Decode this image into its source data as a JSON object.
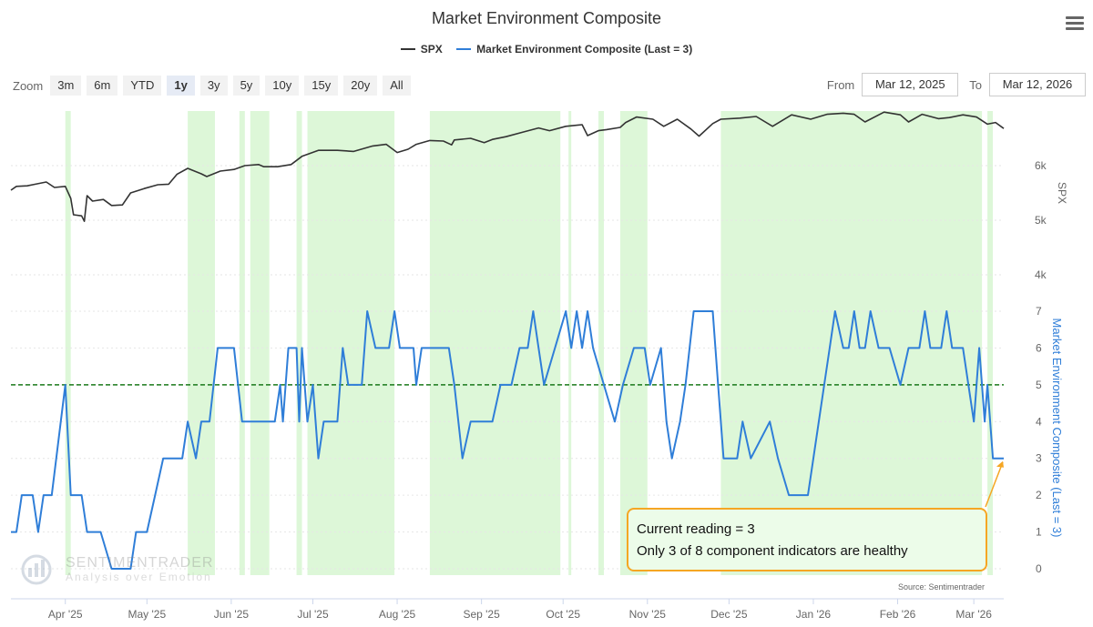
{
  "title": "Market Environment Composite",
  "legend": [
    {
      "name": "SPX",
      "color": "#333333"
    },
    {
      "name": "Market Environment Composite (Last = 3)",
      "color": "#2f7ed8"
    }
  ],
  "zoom": {
    "label": "Zoom",
    "buttons": [
      "3m",
      "6m",
      "YTD",
      "1y",
      "3y",
      "5y",
      "10y",
      "15y",
      "20y",
      "All"
    ],
    "active": "1y"
  },
  "range": {
    "from_label": "From",
    "from": "Mar 12, 2025",
    "to_label": "To",
    "to": "Mar 12, 2026"
  },
  "annotation": {
    "line1": "Current reading = 3",
    "line2": "Only 3 of 8 component indicators are healthy"
  },
  "watermark": {
    "name": "SENTIMENTRADER",
    "tagline": "Analysis over Emotion"
  },
  "credit": "Source: Sentimentrader",
  "colors": {
    "spx": "#333333",
    "composite": "#2f7ed8",
    "threshold": "#1a7a1a",
    "shade": "#ddf7d8",
    "arrow": "#f5a623"
  },
  "chart_data": {
    "type": "line",
    "x_range": [
      "2025-03-12",
      "2026-03-12"
    ],
    "x_ticks": [
      {
        "date": "2025-04-01",
        "label": "Apr '25"
      },
      {
        "date": "2025-05-01",
        "label": "May '25"
      },
      {
        "date": "2025-06-01",
        "label": "Jun '25"
      },
      {
        "date": "2025-07-01",
        "label": "Jul '25"
      },
      {
        "date": "2025-08-01",
        "label": "Aug '25"
      },
      {
        "date": "2025-09-01",
        "label": "Sep '25"
      },
      {
        "date": "2025-10-01",
        "label": "Oct '25"
      },
      {
        "date": "2025-11-01",
        "label": "Nov '25"
      },
      {
        "date": "2025-12-01",
        "label": "Dec '25"
      },
      {
        "date": "2026-01-01",
        "label": "Jan '26"
      },
      {
        "date": "2026-02-01",
        "label": "Feb '26"
      },
      {
        "date": "2026-03-01",
        "label": "Mar '26"
      }
    ],
    "spx_axis": {
      "label": "SPX",
      "ticks": [
        {
          "value": 4000,
          "label": "4k"
        },
        {
          "value": 5000,
          "label": "5k"
        },
        {
          "value": 6000,
          "label": "6k"
        }
      ],
      "range": [
        3000,
        7000
      ]
    },
    "composite_axis": {
      "label": "Market Environment Composite (Last = 3)",
      "ticks": [
        0,
        1,
        2,
        3,
        4,
        5,
        6,
        7
      ],
      "range": [
        0,
        7
      ]
    },
    "threshold": 5,
    "shaded_periods": [
      [
        "2025-04-01",
        "2025-04-03"
      ],
      [
        "2025-05-16",
        "2025-05-26"
      ],
      [
        "2025-06-04",
        "2025-06-06"
      ],
      [
        "2025-06-08",
        "2025-06-15"
      ],
      [
        "2025-06-25",
        "2025-06-27"
      ],
      [
        "2025-06-29",
        "2025-07-31"
      ],
      [
        "2025-08-13",
        "2025-09-30"
      ],
      [
        "2025-10-03",
        "2025-10-04"
      ],
      [
        "2025-10-14",
        "2025-10-16"
      ],
      [
        "2025-10-22",
        "2025-11-01"
      ],
      [
        "2025-11-28",
        "2026-03-04"
      ],
      [
        "2026-03-06",
        "2026-03-08"
      ]
    ],
    "series": [
      {
        "name": "SPX",
        "points": [
          [
            "2025-03-12",
            5550
          ],
          [
            "2025-03-14",
            5620
          ],
          [
            "2025-03-18",
            5630
          ],
          [
            "2025-03-21",
            5660
          ],
          [
            "2025-03-25",
            5700
          ],
          [
            "2025-03-28",
            5600
          ],
          [
            "2025-04-01",
            5620
          ],
          [
            "2025-04-03",
            5400
          ],
          [
            "2025-04-04",
            5100
          ],
          [
            "2025-04-07",
            5080
          ],
          [
            "2025-04-08",
            4980
          ],
          [
            "2025-04-09",
            5450
          ],
          [
            "2025-04-11",
            5350
          ],
          [
            "2025-04-15",
            5380
          ],
          [
            "2025-04-18",
            5270
          ],
          [
            "2025-04-22",
            5280
          ],
          [
            "2025-04-25",
            5500
          ],
          [
            "2025-04-30",
            5580
          ],
          [
            "2025-05-05",
            5650
          ],
          [
            "2025-05-09",
            5660
          ],
          [
            "2025-05-12",
            5840
          ],
          [
            "2025-05-16",
            5950
          ],
          [
            "2025-05-21",
            5850
          ],
          [
            "2025-05-23",
            5800
          ],
          [
            "2025-05-28",
            5900
          ],
          [
            "2025-06-02",
            5930
          ],
          [
            "2025-06-06",
            6000
          ],
          [
            "2025-06-11",
            6020
          ],
          [
            "2025-06-13",
            5980
          ],
          [
            "2025-06-18",
            5980
          ],
          [
            "2025-06-23",
            6020
          ],
          [
            "2025-06-27",
            6170
          ],
          [
            "2025-07-03",
            6280
          ],
          [
            "2025-07-10",
            6280
          ],
          [
            "2025-07-16",
            6260
          ],
          [
            "2025-07-23",
            6360
          ],
          [
            "2025-07-28",
            6390
          ],
          [
            "2025-08-01",
            6240
          ],
          [
            "2025-08-05",
            6300
          ],
          [
            "2025-08-08",
            6390
          ],
          [
            "2025-08-13",
            6460
          ],
          [
            "2025-08-18",
            6450
          ],
          [
            "2025-08-21",
            6380
          ],
          [
            "2025-08-22",
            6470
          ],
          [
            "2025-08-28",
            6500
          ],
          [
            "2025-09-02",
            6420
          ],
          [
            "2025-09-05",
            6480
          ],
          [
            "2025-09-10",
            6530
          ],
          [
            "2025-09-16",
            6610
          ],
          [
            "2025-09-22",
            6690
          ],
          [
            "2025-09-26",
            6640
          ],
          [
            "2025-10-02",
            6720
          ],
          [
            "2025-10-08",
            6750
          ],
          [
            "2025-10-10",
            6550
          ],
          [
            "2025-10-14",
            6640
          ],
          [
            "2025-10-17",
            6660
          ],
          [
            "2025-10-22",
            6700
          ],
          [
            "2025-10-24",
            6790
          ],
          [
            "2025-10-28",
            6890
          ],
          [
            "2025-11-03",
            6850
          ],
          [
            "2025-11-07",
            6720
          ],
          [
            "2025-11-12",
            6850
          ],
          [
            "2025-11-17",
            6670
          ],
          [
            "2025-11-20",
            6540
          ],
          [
            "2025-11-25",
            6770
          ],
          [
            "2025-11-28",
            6850
          ],
          [
            "2025-12-05",
            6870
          ],
          [
            "2025-12-11",
            6900
          ],
          [
            "2025-12-17",
            6720
          ],
          [
            "2025-12-24",
            6930
          ],
          [
            "2025-12-31",
            6850
          ],
          [
            "2026-01-06",
            6940
          ],
          [
            "2026-01-12",
            6960
          ],
          [
            "2026-01-16",
            6940
          ],
          [
            "2026-01-20",
            6800
          ],
          [
            "2026-01-27",
            6980
          ],
          [
            "2026-02-02",
            6930
          ],
          [
            "2026-02-05",
            6800
          ],
          [
            "2026-02-10",
            6940
          ],
          [
            "2026-02-16",
            6860
          ],
          [
            "2026-02-20",
            6880
          ],
          [
            "2026-02-25",
            6930
          ],
          [
            "2026-03-02",
            6890
          ],
          [
            "2026-03-06",
            6760
          ],
          [
            "2026-03-09",
            6790
          ],
          [
            "2026-03-12",
            6680
          ]
        ]
      },
      {
        "name": "Market Environment Composite (Last = 3)",
        "points": [
          [
            "2025-03-12",
            1
          ],
          [
            "2025-03-14",
            1
          ],
          [
            "2025-03-16",
            2
          ],
          [
            "2025-03-20",
            2
          ],
          [
            "2025-03-22",
            1
          ],
          [
            "2025-03-24",
            2
          ],
          [
            "2025-03-27",
            2
          ],
          [
            "2025-04-01",
            5
          ],
          [
            "2025-04-03",
            2
          ],
          [
            "2025-04-07",
            2
          ],
          [
            "2025-04-09",
            1
          ],
          [
            "2025-04-14",
            1
          ],
          [
            "2025-04-18",
            0
          ],
          [
            "2025-04-25",
            0
          ],
          [
            "2025-04-27",
            1
          ],
          [
            "2025-05-01",
            1
          ],
          [
            "2025-05-04",
            2
          ],
          [
            "2025-05-07",
            3
          ],
          [
            "2025-05-14",
            3
          ],
          [
            "2025-05-16",
            4
          ],
          [
            "2025-05-19",
            3
          ],
          [
            "2025-05-21",
            4
          ],
          [
            "2025-05-24",
            4
          ],
          [
            "2025-05-27",
            6
          ],
          [
            "2025-06-02",
            6
          ],
          [
            "2025-06-05",
            4
          ],
          [
            "2025-06-17",
            4
          ],
          [
            "2025-06-19",
            5
          ],
          [
            "2025-06-20",
            4
          ],
          [
            "2025-06-22",
            6
          ],
          [
            "2025-06-25",
            6
          ],
          [
            "2025-06-26",
            4
          ],
          [
            "2025-06-27",
            6
          ],
          [
            "2025-06-29",
            4
          ],
          [
            "2025-07-01",
            5
          ],
          [
            "2025-07-03",
            3
          ],
          [
            "2025-07-05",
            4
          ],
          [
            "2025-07-10",
            4
          ],
          [
            "2025-07-12",
            6
          ],
          [
            "2025-07-14",
            5
          ],
          [
            "2025-07-19",
            5
          ],
          [
            "2025-07-21",
            7
          ],
          [
            "2025-07-24",
            6
          ],
          [
            "2025-07-29",
            6
          ],
          [
            "2025-07-31",
            7
          ],
          [
            "2025-08-02",
            6
          ],
          [
            "2025-08-07",
            6
          ],
          [
            "2025-08-08",
            5
          ],
          [
            "2025-08-10",
            6
          ],
          [
            "2025-08-20",
            6
          ],
          [
            "2025-08-22",
            5
          ],
          [
            "2025-08-25",
            3
          ],
          [
            "2025-08-28",
            4
          ],
          [
            "2025-09-05",
            4
          ],
          [
            "2025-09-08",
            5
          ],
          [
            "2025-09-12",
            5
          ],
          [
            "2025-09-15",
            6
          ],
          [
            "2025-09-18",
            6
          ],
          [
            "2025-09-20",
            7
          ],
          [
            "2025-09-22",
            6
          ],
          [
            "2025-09-24",
            5
          ],
          [
            "2025-09-28",
            6
          ],
          [
            "2025-10-02",
            7
          ],
          [
            "2025-10-04",
            6
          ],
          [
            "2025-10-06",
            7
          ],
          [
            "2025-10-08",
            6
          ],
          [
            "2025-10-10",
            7
          ],
          [
            "2025-10-12",
            6
          ],
          [
            "2025-10-16",
            5
          ],
          [
            "2025-10-20",
            4
          ],
          [
            "2025-10-23",
            5
          ],
          [
            "2025-10-27",
            6
          ],
          [
            "2025-10-31",
            6
          ],
          [
            "2025-11-02",
            5
          ],
          [
            "2025-11-06",
            6
          ],
          [
            "2025-11-08",
            4
          ],
          [
            "2025-11-10",
            3
          ],
          [
            "2025-11-13",
            4
          ],
          [
            "2025-11-15",
            5
          ],
          [
            "2025-11-18",
            7
          ],
          [
            "2025-11-25",
            7
          ],
          [
            "2025-11-27",
            5
          ],
          [
            "2025-11-29",
            3
          ],
          [
            "2025-12-04",
            3
          ],
          [
            "2025-12-06",
            4
          ],
          [
            "2025-12-09",
            3
          ],
          [
            "2025-12-16",
            4
          ],
          [
            "2025-12-19",
            3
          ],
          [
            "2025-12-23",
            2
          ],
          [
            "2025-12-30",
            2
          ],
          [
            "2026-01-01",
            3
          ],
          [
            "2026-01-05",
            5
          ],
          [
            "2026-01-07",
            6
          ],
          [
            "2026-01-09",
            7
          ],
          [
            "2026-01-12",
            6
          ],
          [
            "2026-01-14",
            6
          ],
          [
            "2026-01-16",
            7
          ],
          [
            "2026-01-18",
            6
          ],
          [
            "2026-01-20",
            6
          ],
          [
            "2026-01-22",
            7
          ],
          [
            "2026-01-25",
            6
          ],
          [
            "2026-01-29",
            6
          ],
          [
            "2026-02-02",
            5
          ],
          [
            "2026-02-05",
            6
          ],
          [
            "2026-02-09",
            6
          ],
          [
            "2026-02-11",
            7
          ],
          [
            "2026-02-13",
            6
          ],
          [
            "2026-02-17",
            6
          ],
          [
            "2026-02-19",
            7
          ],
          [
            "2026-02-21",
            6
          ],
          [
            "2026-02-25",
            6
          ],
          [
            "2026-02-27",
            5
          ],
          [
            "2026-03-01",
            4
          ],
          [
            "2026-03-03",
            6
          ],
          [
            "2026-03-04",
            5
          ],
          [
            "2026-03-05",
            4
          ],
          [
            "2026-03-06",
            5
          ],
          [
            "2026-03-08",
            3
          ],
          [
            "2026-03-10",
            3
          ],
          [
            "2026-03-12",
            3
          ]
        ]
      }
    ]
  }
}
